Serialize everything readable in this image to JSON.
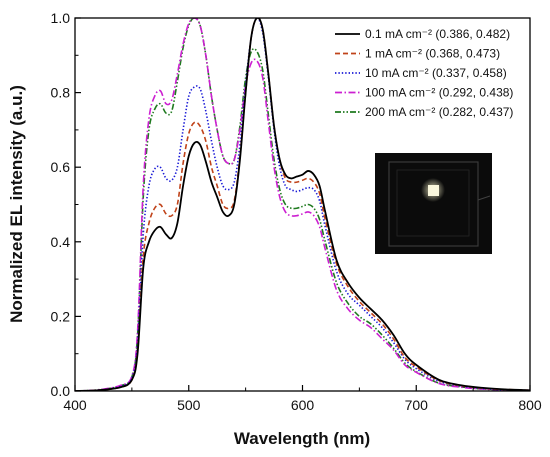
{
  "chart_data": {
    "type": "line",
    "title": "",
    "xlabel": "Wavelength (nm)",
    "ylabel": "Normalized EL intensity (a.u.)",
    "xlim": [
      400,
      800
    ],
    "ylim": [
      0.0,
      1.0
    ],
    "x_ticks": [
      400,
      500,
      600,
      700,
      800
    ],
    "x_tick_labels": [
      "400",
      "500",
      "600",
      "700",
      "800"
    ],
    "y_ticks": [
      0.0,
      0.2,
      0.4,
      0.6,
      0.8,
      1.0
    ],
    "y_tick_labels": [
      "0.0",
      "0.2",
      "0.4",
      "0.6",
      "0.8",
      "1.0"
    ],
    "grid": false,
    "legend_position": "top-right",
    "inset": "device photograph",
    "series": [
      {
        "name": "0.1  mA cm⁻² (0.386, 0.482)",
        "color": "#000000",
        "dash": "solid",
        "x": [
          400,
          420,
          440,
          450,
          455,
          460,
          465,
          470,
          475,
          480,
          485,
          490,
          495,
          500,
          505,
          510,
          515,
          520,
          525,
          530,
          535,
          540,
          545,
          550,
          555,
          560,
          565,
          570,
          575,
          580,
          585,
          590,
          595,
          600,
          605,
          610,
          615,
          620,
          630,
          640,
          650,
          660,
          670,
          680,
          690,
          700,
          720,
          740,
          760,
          780,
          800
        ],
        "y": [
          0,
          0.002,
          0.01,
          0.03,
          0.1,
          0.33,
          0.4,
          0.43,
          0.44,
          0.42,
          0.41,
          0.45,
          0.55,
          0.63,
          0.665,
          0.66,
          0.615,
          0.56,
          0.52,
          0.48,
          0.47,
          0.5,
          0.62,
          0.8,
          0.95,
          1.0,
          0.97,
          0.85,
          0.71,
          0.62,
          0.58,
          0.57,
          0.575,
          0.58,
          0.59,
          0.58,
          0.55,
          0.48,
          0.35,
          0.29,
          0.25,
          0.22,
          0.19,
          0.15,
          0.1,
          0.07,
          0.03,
          0.015,
          0.008,
          0.004,
          0.002
        ]
      },
      {
        "name": "1  mA cm⁻² (0.368, 0.473)",
        "color": "#c0431a",
        "dash": "dashed",
        "x": [
          400,
          420,
          440,
          450,
          455,
          460,
          465,
          470,
          475,
          480,
          485,
          490,
          495,
          500,
          505,
          510,
          515,
          520,
          525,
          530,
          535,
          540,
          545,
          550,
          555,
          560,
          565,
          570,
          575,
          580,
          585,
          590,
          595,
          600,
          605,
          610,
          615,
          620,
          630,
          640,
          650,
          660,
          670,
          680,
          690,
          700,
          720,
          740,
          760,
          780,
          800
        ],
        "y": [
          0,
          0.002,
          0.01,
          0.03,
          0.11,
          0.36,
          0.45,
          0.49,
          0.5,
          0.475,
          0.47,
          0.5,
          0.61,
          0.69,
          0.72,
          0.71,
          0.67,
          0.6,
          0.55,
          0.5,
          0.49,
          0.51,
          0.63,
          0.8,
          0.95,
          1.0,
          0.97,
          0.85,
          0.71,
          0.62,
          0.57,
          0.56,
          0.56,
          0.565,
          0.57,
          0.56,
          0.53,
          0.46,
          0.34,
          0.28,
          0.24,
          0.21,
          0.18,
          0.14,
          0.09,
          0.065,
          0.028,
          0.014,
          0.007,
          0.004,
          0.002
        ]
      },
      {
        "name": "10  mA cm⁻² (0.337, 0.458)",
        "color": "#1a1ad6",
        "dash": "dotted",
        "x": [
          400,
          420,
          440,
          450,
          455,
          460,
          465,
          470,
          475,
          480,
          485,
          490,
          495,
          500,
          505,
          510,
          515,
          520,
          525,
          530,
          535,
          540,
          545,
          550,
          555,
          560,
          565,
          570,
          575,
          580,
          585,
          590,
          595,
          600,
          605,
          610,
          615,
          620,
          630,
          640,
          650,
          660,
          670,
          680,
          690,
          700,
          720,
          740,
          760,
          780,
          800
        ],
        "y": [
          0,
          0.002,
          0.012,
          0.035,
          0.13,
          0.42,
          0.55,
          0.595,
          0.6,
          0.57,
          0.565,
          0.6,
          0.7,
          0.79,
          0.815,
          0.81,
          0.75,
          0.67,
          0.6,
          0.55,
          0.54,
          0.56,
          0.66,
          0.82,
          0.95,
          1.0,
          0.96,
          0.84,
          0.7,
          0.6,
          0.55,
          0.54,
          0.535,
          0.54,
          0.545,
          0.54,
          0.51,
          0.44,
          0.32,
          0.26,
          0.23,
          0.2,
          0.17,
          0.13,
          0.085,
          0.06,
          0.026,
          0.013,
          0.006,
          0.003,
          0.002
        ]
      },
      {
        "name": "100  mA cm⁻² (0.292, 0.438)",
        "color": "#cc1fd1",
        "dash": "dashdot",
        "x": [
          400,
          420,
          440,
          450,
          455,
          460,
          465,
          470,
          475,
          480,
          485,
          490,
          495,
          500,
          505,
          510,
          515,
          520,
          525,
          530,
          535,
          540,
          545,
          550,
          555,
          560,
          565,
          570,
          575,
          580,
          585,
          590,
          595,
          600,
          605,
          610,
          615,
          620,
          630,
          640,
          650,
          660,
          670,
          680,
          690,
          700,
          720,
          740,
          760,
          780,
          800
        ],
        "y": [
          0,
          0.003,
          0.015,
          0.04,
          0.16,
          0.55,
          0.73,
          0.79,
          0.805,
          0.77,
          0.78,
          0.85,
          0.93,
          0.985,
          1.0,
          0.98,
          0.9,
          0.79,
          0.7,
          0.63,
          0.61,
          0.62,
          0.7,
          0.82,
          0.88,
          0.885,
          0.84,
          0.72,
          0.6,
          0.52,
          0.48,
          0.47,
          0.47,
          0.475,
          0.48,
          0.47,
          0.44,
          0.38,
          0.27,
          0.22,
          0.19,
          0.17,
          0.14,
          0.11,
          0.07,
          0.05,
          0.02,
          0.01,
          0.005,
          0.003,
          0.001
        ]
      },
      {
        "name": "200  mA cm⁻² (0.282, 0.437)",
        "color": "#1f7a1f",
        "dash": "dashdotdot",
        "x": [
          400,
          420,
          440,
          450,
          455,
          460,
          465,
          470,
          475,
          480,
          485,
          490,
          495,
          500,
          505,
          510,
          515,
          520,
          525,
          530,
          535,
          540,
          545,
          550,
          555,
          560,
          565,
          570,
          575,
          580,
          585,
          590,
          595,
          600,
          605,
          610,
          615,
          620,
          630,
          640,
          650,
          660,
          670,
          680,
          690,
          700,
          720,
          740,
          760,
          780,
          800
        ],
        "y": [
          0,
          0.003,
          0.014,
          0.038,
          0.15,
          0.52,
          0.7,
          0.755,
          0.77,
          0.745,
          0.75,
          0.83,
          0.92,
          0.98,
          1.0,
          0.98,
          0.9,
          0.79,
          0.7,
          0.63,
          0.61,
          0.62,
          0.71,
          0.84,
          0.91,
          0.91,
          0.86,
          0.74,
          0.62,
          0.54,
          0.5,
          0.49,
          0.49,
          0.495,
          0.5,
          0.49,
          0.46,
          0.4,
          0.29,
          0.235,
          0.2,
          0.18,
          0.15,
          0.115,
          0.075,
          0.052,
          0.021,
          0.011,
          0.005,
          0.003,
          0.001
        ]
      }
    ]
  }
}
